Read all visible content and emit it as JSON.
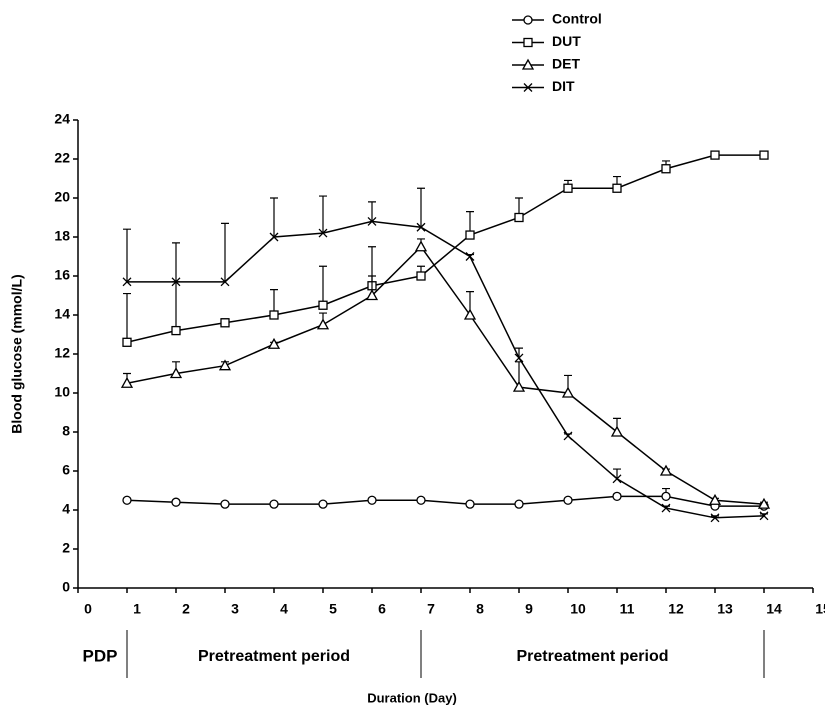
{
  "chart_data": {
    "type": "line",
    "y_label": "Blood glucose (mmol/L)",
    "x_label": "Duration (Day)",
    "annotations": [
      "PDP",
      "Pretreatment period",
      "Pretreatment period"
    ],
    "x": [
      1,
      2,
      3,
      4,
      5,
      6,
      7,
      8,
      9,
      10,
      11,
      12,
      13,
      14
    ],
    "xlim": [
      0,
      15
    ],
    "xticks": [
      0,
      1,
      2,
      3,
      4,
      5,
      6,
      7,
      8,
      9,
      10,
      11,
      12,
      13,
      14,
      15
    ],
    "ylim": [
      0,
      24
    ],
    "yticks": [
      0,
      2,
      4,
      6,
      8,
      10,
      12,
      14,
      16,
      18,
      20,
      22,
      24
    ],
    "legend": "top-right",
    "series": [
      {
        "name": "Control",
        "color": "#000000",
        "marker": "circle",
        "values": [
          4.5,
          4.4,
          4.3,
          4.3,
          4.3,
          4.5,
          4.5,
          4.3,
          4.3,
          4.5,
          4.7,
          4.7,
          4.2,
          4.2
        ],
        "errors": [
          0.1,
          0.1,
          0.1,
          0.1,
          0.1,
          0.1,
          0.1,
          0.1,
          0.1,
          0.1,
          0.1,
          0.4,
          0.1,
          0.1
        ]
      },
      {
        "name": "DUT",
        "color": "#000000",
        "marker": "square",
        "values": [
          12.6,
          13.2,
          13.6,
          14.0,
          14.5,
          15.5,
          16.0,
          18.1,
          19.0,
          20.5,
          20.5,
          21.5,
          22.2,
          22.2
        ],
        "errors": [
          2.5,
          2.5,
          0.2,
          1.3,
          2.0,
          2.0,
          0.5,
          1.2,
          1.0,
          0.4,
          0.6,
          0.4,
          0.1,
          0.1
        ]
      },
      {
        "name": "DET",
        "color": "#000000",
        "marker": "triangle",
        "values": [
          10.5,
          11.0,
          11.4,
          12.5,
          13.5,
          15.0,
          17.5,
          14.0,
          10.3,
          10.0,
          8.0,
          6.0,
          4.5,
          4.3
        ],
        "errors": [
          0.5,
          0.6,
          0.2,
          0.1,
          0.6,
          1.0,
          0.4,
          1.2,
          1.3,
          0.9,
          0.7,
          0.1,
          0.1,
          0.1
        ]
      },
      {
        "name": "DIT",
        "color": "#000000",
        "marker": "x",
        "values": [
          15.7,
          15.7,
          15.7,
          18.0,
          18.2,
          18.8,
          18.5,
          17.0,
          11.8,
          7.8,
          5.6,
          4.1,
          3.6,
          3.7
        ],
        "errors": [
          2.7,
          2.0,
          3.0,
          2.0,
          1.9,
          1.0,
          2.0,
          0.1,
          0.5,
          0.1,
          0.5,
          0.1,
          0.1,
          0.1
        ]
      }
    ]
  }
}
